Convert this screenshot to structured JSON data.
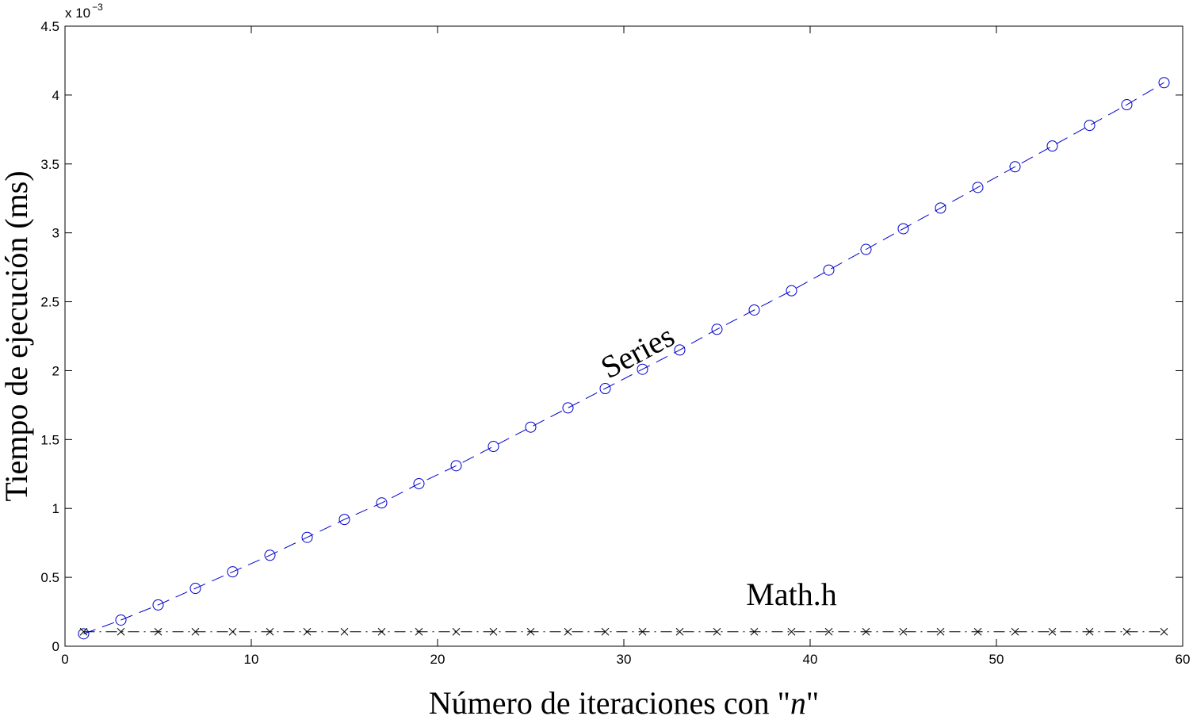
{
  "chart_data": {
    "type": "line",
    "xlabel_prefix": "Número de iteraciones con \"",
    "xlabel_var": "n",
    "xlabel_suffix": "\"",
    "ylabel": "Tiempo de ejecución (ms)",
    "y_multiplier_base": "x 10",
    "y_multiplier_exp": "−3",
    "xlim": [
      0,
      60
    ],
    "ylim": [
      0,
      4.5
    ],
    "x_ticks": [
      0,
      10,
      20,
      30,
      40,
      50,
      60
    ],
    "y_ticks": [
      0,
      0.5,
      1,
      1.5,
      2,
      2.5,
      3,
      3.5,
      4,
      4.5
    ],
    "x_tick_labels": [
      "0",
      "10",
      "20",
      "30",
      "40",
      "50",
      "60"
    ],
    "y_tick_labels": [
      "0",
      "0.5",
      "1",
      "1.5",
      "2",
      "2.5",
      "3",
      "3.5",
      "4",
      "4.5"
    ],
    "grid": false,
    "x": [
      1,
      3,
      5,
      7,
      9,
      11,
      13,
      15,
      17,
      19,
      21,
      23,
      25,
      27,
      29,
      31,
      33,
      35,
      37,
      39,
      41,
      43,
      45,
      47,
      49,
      51,
      53,
      55,
      57,
      59
    ],
    "series": [
      {
        "name": "Series",
        "color": "#0000cc",
        "line_style": "dashed",
        "marker": "circle",
        "values": [
          0.09,
          0.19,
          0.3,
          0.42,
          0.54,
          0.66,
          0.79,
          0.92,
          1.04,
          1.18,
          1.31,
          1.45,
          1.59,
          1.73,
          1.87,
          2.01,
          2.15,
          2.3,
          2.44,
          2.58,
          2.73,
          2.88,
          3.03,
          3.18,
          3.33,
          3.48,
          3.63,
          3.78,
          3.93,
          4.09
        ]
      },
      {
        "name": "Math.h",
        "color": "#000000",
        "line_style": "dashdot",
        "marker": "x",
        "values": [
          0.105,
          0.105,
          0.105,
          0.105,
          0.105,
          0.105,
          0.105,
          0.105,
          0.105,
          0.105,
          0.105,
          0.105,
          0.105,
          0.105,
          0.105,
          0.105,
          0.105,
          0.105,
          0.105,
          0.105,
          0.105,
          0.105,
          0.105,
          0.105,
          0.105,
          0.105,
          0.105,
          0.105,
          0.105,
          0.105
        ]
      }
    ],
    "annotations": [
      {
        "text": "Series",
        "x": 31,
        "y": 2.07,
        "rotate_deg": -28
      },
      {
        "text": "Math.h",
        "x": 39,
        "y": 0.3,
        "rotate_deg": 0
      }
    ]
  }
}
